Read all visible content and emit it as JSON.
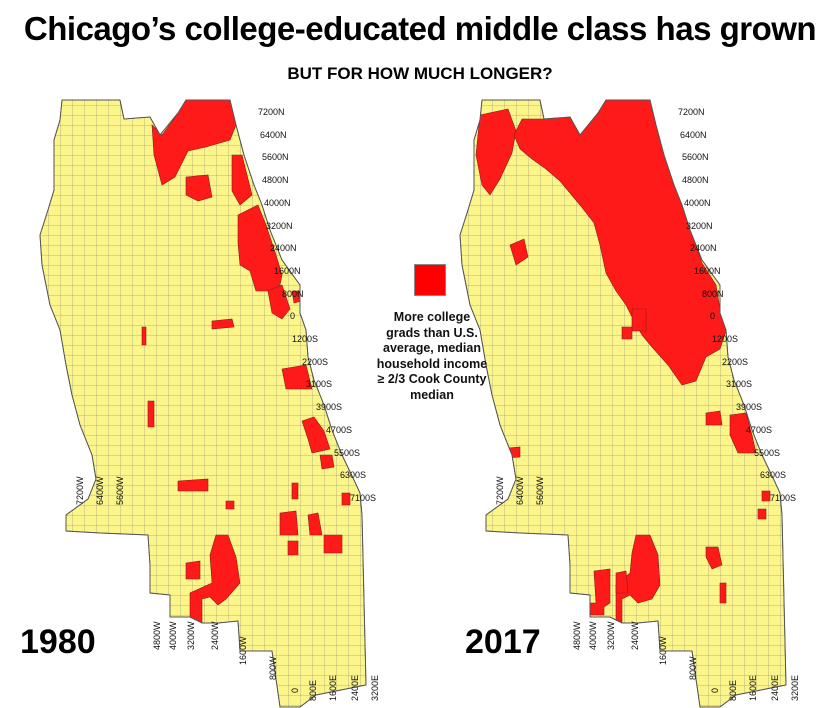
{
  "title": "Chicago’s college-educated middle class has grown",
  "subtitle": "BUT FOR HOW MUCH LONGER?",
  "colors": {
    "qualifying": "#ff1a1a",
    "other": "#fbf58a",
    "outline": "#666666"
  },
  "legend": {
    "swatch_color": "#ff0000",
    "line1": "More college",
    "line2": "grads than U.S.",
    "line3": "average, median",
    "line4": "household income",
    "line5": "≥ 2/3 Cook County",
    "line6": "median"
  },
  "maps": [
    {
      "year": "1980",
      "ns_streets": [
        "7200N",
        "6400N",
        "5600N",
        "4800N",
        "4000N",
        "3200N",
        "2400N",
        "1600N",
        "800N",
        "0",
        "1200S",
        "2200S",
        "3100S",
        "3900S",
        "4700S",
        "5500S",
        "6300S",
        "7100S"
      ],
      "west_streets": [
        "7200W",
        "6400W",
        "5600W"
      ],
      "south_streets": [
        "4800W",
        "4000W",
        "3200W",
        "2400W",
        "1600W",
        "800W",
        "0",
        "800E",
        "1600E",
        "2400E",
        "3200E"
      ]
    },
    {
      "year": "2017",
      "ns_streets": [
        "7200N",
        "6400N",
        "5600N",
        "4800N",
        "4000N",
        "3200N",
        "2400N",
        "1600N",
        "800N",
        "0",
        "1200S",
        "2200S",
        "3100S",
        "3900S",
        "4700S",
        "5500S",
        "6300S",
        "7100S"
      ],
      "west_streets": [
        "7200W",
        "6400W",
        "5600W"
      ],
      "south_streets": [
        "4800W",
        "4000W",
        "3200W",
        "2400W",
        "1600W",
        "800W",
        "0",
        "800E",
        "1600E",
        "2400E",
        "3200E"
      ]
    }
  ]
}
